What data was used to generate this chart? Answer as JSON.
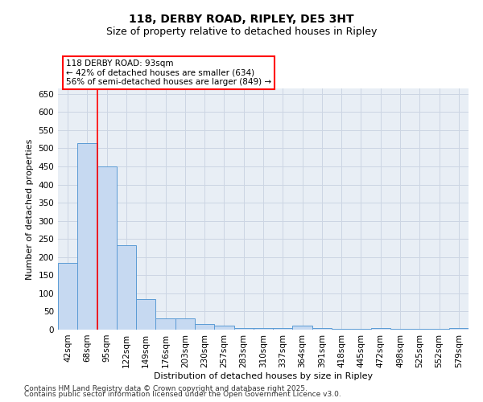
{
  "title1": "118, DERBY ROAD, RIPLEY, DE5 3HT",
  "title2": "Size of property relative to detached houses in Ripley",
  "xlabel": "Distribution of detached houses by size in Ripley",
  "ylabel": "Number of detached properties",
  "categories": [
    "42sqm",
    "68sqm",
    "95sqm",
    "122sqm",
    "149sqm",
    "176sqm",
    "203sqm",
    "230sqm",
    "257sqm",
    "283sqm",
    "310sqm",
    "337sqm",
    "364sqm",
    "391sqm",
    "418sqm",
    "445sqm",
    "472sqm",
    "498sqm",
    "525sqm",
    "552sqm",
    "579sqm"
  ],
  "values": [
    185,
    515,
    450,
    232,
    85,
    30,
    30,
    15,
    10,
    5,
    5,
    5,
    10,
    5,
    2,
    2,
    5,
    2,
    2,
    2,
    5
  ],
  "bar_color": "#c6d9f1",
  "bar_edge_color": "#5b9bd5",
  "red_line_x": 1.5,
  "annotation_text": "118 DERBY ROAD: 93sqm\n← 42% of detached houses are smaller (634)\n56% of semi-detached houses are larger (849) →",
  "ylim": [
    0,
    665
  ],
  "yticks": [
    0,
    50,
    100,
    150,
    200,
    250,
    300,
    350,
    400,
    450,
    500,
    550,
    600,
    650
  ],
  "grid_color": "#ccd5e3",
  "background_color": "#e8eef5",
  "footer1": "Contains HM Land Registry data © Crown copyright and database right 2025.",
  "footer2": "Contains public sector information licensed under the Open Government Licence v3.0.",
  "title_fontsize": 10,
  "subtitle_fontsize": 9,
  "axis_label_fontsize": 8,
  "tick_fontsize": 7.5,
  "footer_fontsize": 6.5
}
